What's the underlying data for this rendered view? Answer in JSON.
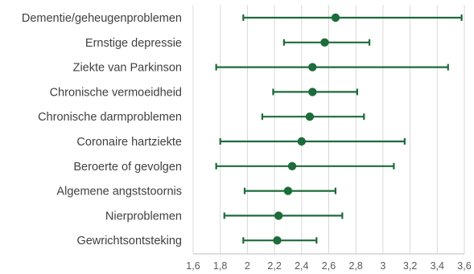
{
  "chart_data": {
    "type": "scatter",
    "orientation": "horizontal",
    "categories": [
      "Dementie/geheugenproblemen",
      "Ernstige depressie",
      "Ziekte van Parkinson",
      "Chronische vermoeidheid",
      "Chronische darmproblemen",
      "Coronaire hartziekte",
      "Beroerte of gevolgen",
      "Algemene angststoornis",
      "Nierproblemen",
      "Gewrichtsontsteking"
    ],
    "series": [
      {
        "values": [
          2.65,
          2.57,
          2.48,
          2.48,
          2.46,
          2.4,
          2.33,
          2.3,
          2.23,
          2.22
        ],
        "lower": [
          1.97,
          2.27,
          1.77,
          2.19,
          2.11,
          1.8,
          1.77,
          1.98,
          1.83,
          1.97
        ],
        "upper": [
          3.58,
          2.9,
          3.48,
          2.81,
          2.86,
          3.16,
          3.08,
          2.65,
          2.7,
          2.51
        ]
      }
    ],
    "xlim": [
      1.6,
      3.6
    ],
    "xticks": [
      1.6,
      1.8,
      2.0,
      2.2,
      2.4,
      2.6,
      2.8,
      3.0,
      3.2,
      3.4,
      3.6
    ],
    "xtick_labels": [
      "1,6",
      "1,8",
      "2",
      "2,2",
      "2,4",
      "2,6",
      "2,8",
      "3",
      "3,2",
      "3,4",
      "3,6"
    ],
    "grid": true,
    "color": "#1e6b3c"
  }
}
